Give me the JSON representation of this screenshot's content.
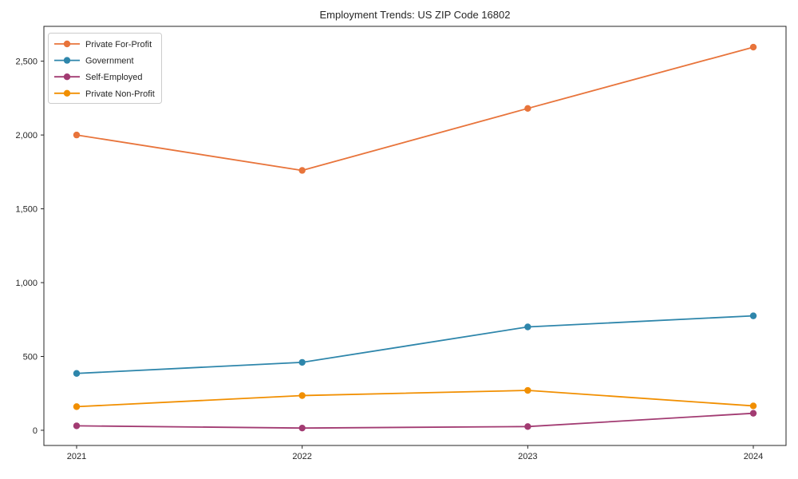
{
  "figure": {
    "title": "Employment Trends: US ZIP Code 16802"
  },
  "chart_data": {
    "type": "line",
    "title": "Employment Trends: US ZIP Code 16802",
    "x": [
      "2021",
      "2022",
      "2023",
      "2024"
    ],
    "series": [
      {
        "name": "Private For-Profit",
        "color": "#E8743B",
        "values": [
          2000,
          1760,
          2180,
          2595
        ]
      },
      {
        "name": "Government",
        "color": "#2E86AB",
        "values": [
          385,
          460,
          700,
          775
        ]
      },
      {
        "name": "Self-Employed",
        "color": "#A23B72",
        "values": [
          30,
          15,
          25,
          115
        ]
      },
      {
        "name": "Private Non-Profit",
        "color": "#F18F01",
        "values": [
          160,
          235,
          270,
          165
        ]
      }
    ],
    "xlabel": "",
    "ylabel": "",
    "ylim": [
      -103,
      2736
    ],
    "yticks": [
      0,
      500,
      1000,
      1500,
      2000,
      2500
    ],
    "ytick_labels": [
      "0",
      "500",
      "1,000",
      "1,500",
      "2,000",
      "2,500"
    ],
    "grid": false,
    "legend_position": "upper-left",
    "marker": "circle"
  },
  "style": {
    "axis_color": "#262626",
    "legend_border_color": "#cccccc",
    "background": "#ffffff"
  }
}
